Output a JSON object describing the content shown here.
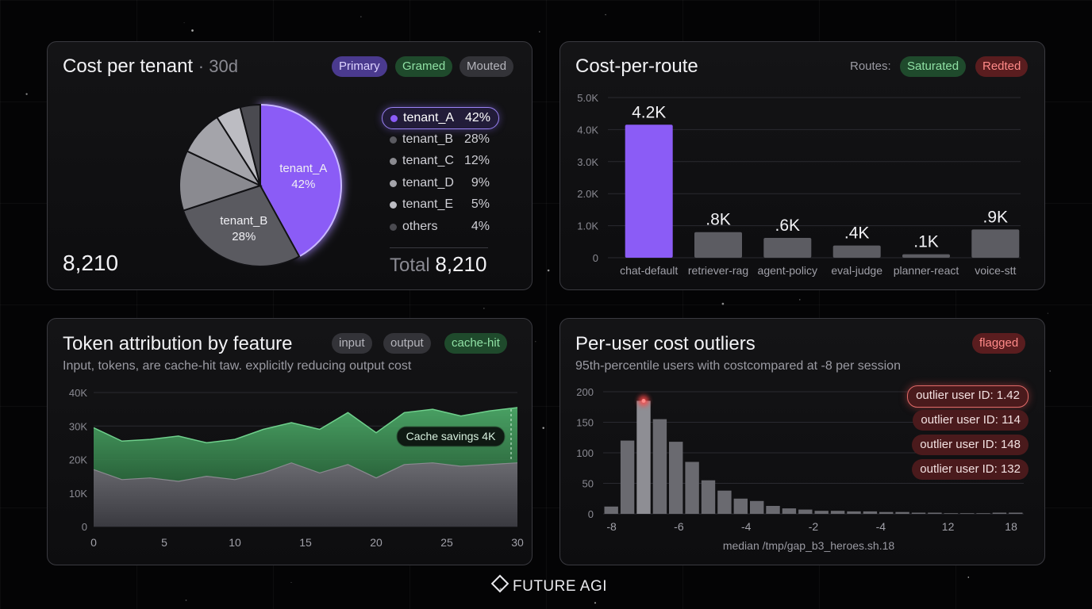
{
  "cost_per_tenant": {
    "title": "Cost per tenant",
    "period": "· 30d",
    "chips": [
      "Primary",
      "Gramed",
      "Mouted"
    ],
    "big_value": "8,210",
    "total_label": "Total",
    "total_value": "8,210",
    "legend": [
      {
        "name": "tenant_A",
        "pct": "42%",
        "color": "#8b5cf6"
      },
      {
        "name": "tenant_B",
        "pct": "28%",
        "color": "#5a5a60"
      },
      {
        "name": "tenant_C",
        "pct": "12%",
        "color": "#8a8a90"
      },
      {
        "name": "tenant_D",
        "pct": "9%",
        "color": "#a4a4aa"
      },
      {
        "name": "tenant_E",
        "pct": "5%",
        "color": "#bcbcc2"
      },
      {
        "name": "others",
        "pct": "4%",
        "color": "#4a4a50"
      }
    ],
    "chart_data": {
      "type": "pie",
      "categories": [
        "tenant_A",
        "tenant_B",
        "tenant_C",
        "tenant_D",
        "tenant_E",
        "others"
      ],
      "values": [
        42,
        28,
        12,
        9,
        5,
        4
      ],
      "slice_labels": [
        {
          "name": "tenant_A",
          "pct": "42%"
        },
        {
          "name": "tenant_B",
          "pct": "28%"
        }
      ]
    }
  },
  "cost_per_route": {
    "title": "Cost-per-route",
    "routes_label": "Routes:",
    "chips": [
      "Saturated",
      "Redted"
    ],
    "chart_data": {
      "type": "bar",
      "categories": [
        "chat-default",
        "retriever-rag",
        "agent-policy",
        "eval-judge",
        "planner-react",
        "voice-stt"
      ],
      "values": [
        4150,
        800,
        620,
        380,
        110,
        880
      ],
      "value_labels": [
        "4.2K",
        ".8K",
        ".6K",
        ".4K",
        ".1K",
        ".9K"
      ],
      "y_ticks": [
        "0",
        "1.0K",
        "2.0K",
        "3.0K",
        "4.0K",
        "5.0K"
      ],
      "ylim": [
        0,
        5000
      ],
      "colors": [
        "#8b5cf6",
        "#5c5c62"
      ],
      "grid": true
    }
  },
  "token_attribution": {
    "title": "Token attribution by feature",
    "chips": [
      "input",
      "output",
      "cache-hit"
    ],
    "subtitle": "Input, tokens, are cache-hit taw. explicitly reducing output cost",
    "annotation": "Cache savings 4K",
    "chart_data": {
      "type": "area",
      "x": [
        0,
        2,
        4,
        6,
        8,
        10,
        12,
        14,
        16,
        18,
        20,
        22,
        24,
        26,
        28,
        30
      ],
      "series": [
        {
          "values": [
            17000,
            14000,
            14500,
            13500,
            15000,
            14000,
            16000,
            19000,
            16000,
            18500,
            14500,
            18500,
            19000,
            18000,
            18500,
            19000
          ],
          "color": "#5c5c62"
        },
        {
          "values": [
            29500,
            25500,
            26000,
            27000,
            25000,
            26000,
            29000,
            31000,
            29000,
            34000,
            28000,
            34000,
            35000,
            33000,
            34500,
            35500
          ],
          "color": "#3f9e5c"
        }
      ],
      "x_ticks": [
        0,
        5,
        10,
        15,
        20,
        25,
        30
      ],
      "y_ticks": [
        "0",
        "10K",
        "20K",
        "30K",
        "40K"
      ],
      "ylim": [
        0,
        40000
      ],
      "xlim": [
        0,
        30
      ],
      "grid": true
    }
  },
  "outliers": {
    "title": "Per-user cost outliers",
    "badge": "flagged",
    "subtitle": "95th-percentile users with costcompared at -8 per session",
    "items": [
      "outlier user ID: 1.42",
      "outlier user ID: 114",
      "outlier user ID: 148",
      "outlier user ID: 132"
    ],
    "chart_data": {
      "type": "bar",
      "values": [
        12,
        120,
        185,
        155,
        118,
        85,
        55,
        38,
        25,
        21,
        13,
        9,
        7,
        5,
        5,
        4,
        4,
        3,
        3,
        2,
        2,
        1,
        1,
        1,
        2,
        2
      ],
      "x_ticks": [
        "-8",
        "-6",
        "-4",
        "-2",
        "-4",
        "12",
        "18"
      ],
      "y_ticks": [
        "0",
        "50",
        "100",
        "150",
        "200"
      ],
      "ylim": [
        0,
        200
      ],
      "xlabel": "median /tmp/gap_b3_heroes.sh.18",
      "grid": true
    }
  },
  "brand": "FUTURE AGI"
}
